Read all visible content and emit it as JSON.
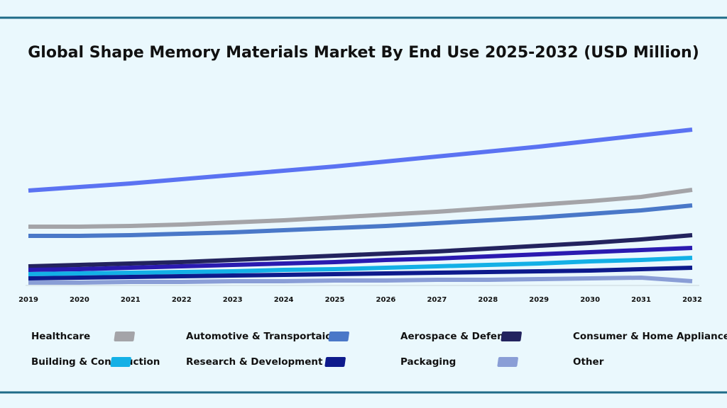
{
  "chart_data": {
    "type": "line",
    "title": "Global Shape Memory Materials Market By End Use 2025-2032 (USD Million)",
    "categories": [
      "2019",
      "2020",
      "2021",
      "2022",
      "2023",
      "2024",
      "2025",
      "2026",
      "2027",
      "2028",
      "2029",
      "2030",
      "2031",
      "2032"
    ],
    "ylim": [
      0,
      250
    ],
    "series": [
      {
        "name": "Healthcare",
        "color": "#5b73f2",
        "values": [
          133,
          138,
          143,
          149,
          155,
          161,
          167,
          174,
          181,
          188,
          195,
          203,
          211,
          219
        ]
      },
      {
        "name": "Automotive & Transportaion",
        "color": "#a4a4a8",
        "values": [
          82,
          82,
          83,
          85,
          88,
          91,
          95,
          99,
          103,
          108,
          113,
          118,
          124,
          134
        ]
      },
      {
        "name": "Aerospace & Defense",
        "color": "#4a78c8",
        "values": [
          69,
          69,
          70,
          72,
          74,
          77,
          80,
          83,
          87,
          91,
          95,
          100,
          105,
          112
        ]
      },
      {
        "name": "Consumer & Home Appliances",
        "color": "#23235e",
        "values": [
          26,
          28,
          30,
          32,
          35,
          38,
          41,
          44,
          47,
          51,
          55,
          59,
          64,
          70
        ]
      },
      {
        "name": "Building & Construction",
        "color": "#2a1ab0",
        "values": [
          21,
          22,
          24,
          26,
          28,
          30,
          32,
          35,
          37,
          40,
          43,
          46,
          49,
          52
        ]
      },
      {
        "name": "Research & Development",
        "color": "#13b0e6",
        "values": [
          15,
          16,
          17,
          18,
          19,
          21,
          22,
          24,
          26,
          28,
          30,
          33,
          35,
          38
        ]
      },
      {
        "name": "Packaging",
        "color": "#0d1a8c",
        "values": [
          9,
          10,
          11,
          12,
          13,
          14,
          15,
          16,
          17,
          18,
          19,
          20,
          22,
          24
        ]
      },
      {
        "name": "Other",
        "color": "#8a9ed6",
        "values": [
          3,
          3,
          4,
          4,
          5,
          5,
          6,
          6,
          7,
          7,
          8,
          9,
          10,
          5
        ]
      }
    ]
  }
}
